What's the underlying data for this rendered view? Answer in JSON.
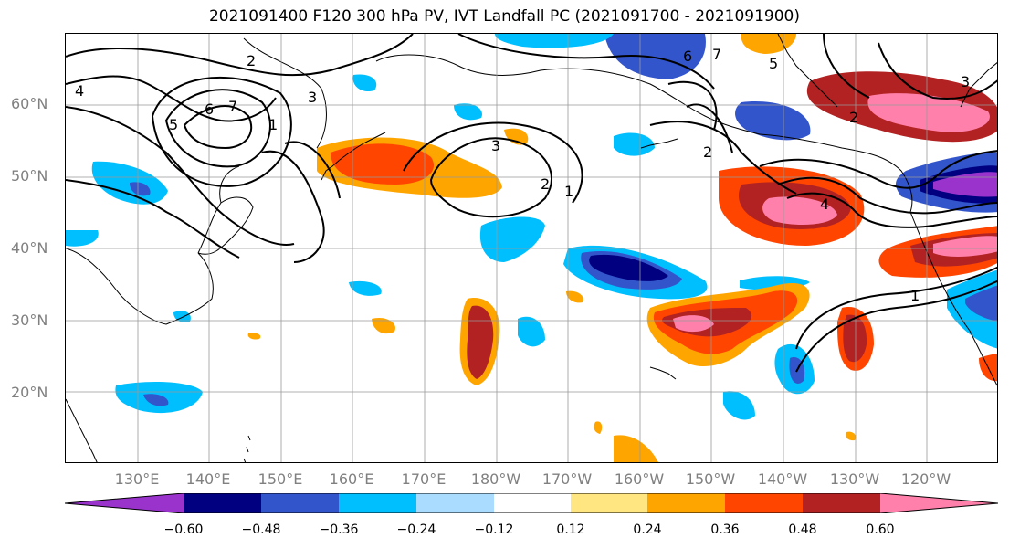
{
  "title": "2021091400 F120 300 hPa PV, IVT Landfall PC (2021091700 - 2021091900)",
  "lat_labels": [
    "20°N",
    "30°N",
    "40°N",
    "50°N",
    "60°N"
  ],
  "lon_labels": [
    "130°E",
    "140°E",
    "150°E",
    "160°E",
    "170°E",
    "180°W",
    "170°W",
    "160°W",
    "150°W",
    "140°W",
    "130°W",
    "120°W"
  ],
  "colorbar": {
    "colors": [
      "#9933cc",
      "#000080",
      "#3355cc",
      "#00bfff",
      "#aadcff",
      "#ffffff",
      "#ffe680",
      "#ffa500",
      "#ff4500",
      "#b22222",
      "#ff80aa"
    ],
    "tick_labels": [
      "−0.60",
      "−0.48",
      "−0.36",
      "−0.24",
      "−0.12",
      "0.12",
      "0.24",
      "0.36",
      "0.48",
      "0.60"
    ]
  },
  "contour_labels": [
    "2",
    "7",
    "5",
    "6",
    "3",
    "4",
    "1",
    "6",
    "7",
    "5",
    "3",
    "2",
    "1",
    "2",
    "4",
    "1",
    "2",
    "3"
  ]
}
